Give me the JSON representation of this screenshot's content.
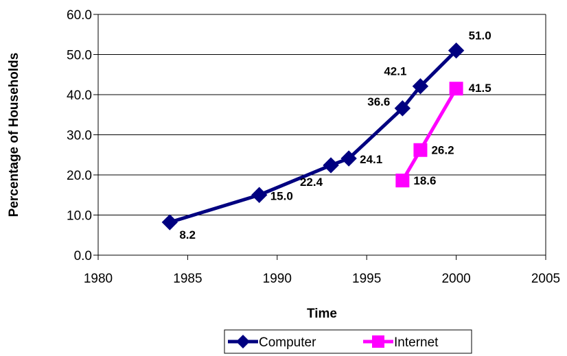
{
  "chart_data": {
    "type": "line",
    "xlabel": "Time",
    "ylabel": "Percentage of Households",
    "xlim": [
      1980,
      2005
    ],
    "ylim": [
      0,
      60
    ],
    "x_ticks": [
      1980,
      1985,
      1990,
      1995,
      2000,
      2005
    ],
    "y_ticks": [
      "0.0",
      "10.0",
      "20.0",
      "30.0",
      "40.0",
      "50.0",
      "60.0"
    ],
    "grid": "horizontal",
    "legend_position": "bottom",
    "series": [
      {
        "name": "Computer",
        "color": "#000080",
        "marker": "diamond",
        "x": [
          1984,
          1989,
          1993,
          1994,
          1997,
          1998,
          2000
        ],
        "y": [
          8.2,
          15.0,
          22.4,
          24.1,
          36.6,
          42.1,
          51.0
        ],
        "labels": [
          "8.2",
          "15.0",
          "22.4",
          "24.1",
          "36.6",
          "42.1",
          "51.0"
        ]
      },
      {
        "name": "Internet",
        "color": "#FF00FF",
        "marker": "square",
        "x": [
          1997,
          1998,
          2000
        ],
        "y": [
          18.6,
          26.2,
          41.5
        ],
        "labels": [
          "18.6",
          "26.2",
          "41.5"
        ]
      }
    ]
  }
}
